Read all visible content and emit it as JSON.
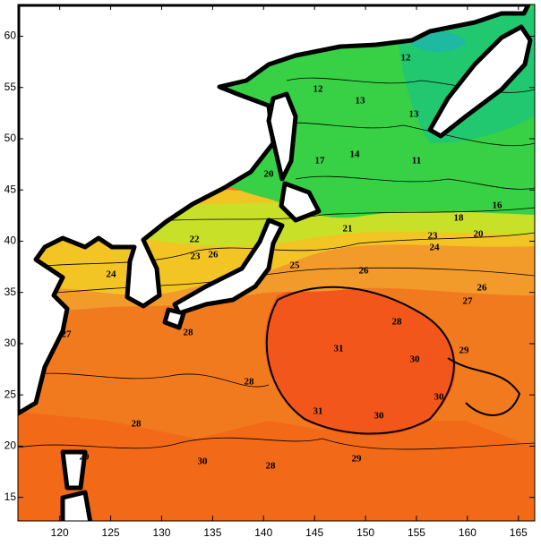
{
  "map": {
    "xlim": [
      115.9,
      166.6
    ],
    "ylim": [
      12.7,
      63.1
    ],
    "xticks": [
      120,
      125,
      130,
      135,
      140,
      145,
      150,
      155,
      160,
      165
    ],
    "yticks": [
      15,
      20,
      25,
      30,
      35,
      40,
      45,
      50,
      55,
      60
    ],
    "contour_labels": [
      12,
      13,
      12,
      13,
      11,
      14,
      17,
      20,
      18,
      16,
      20,
      21,
      23,
      24,
      22,
      23,
      26,
      25,
      26,
      26,
      27,
      24,
      28,
      27,
      29,
      31,
      30,
      28,
      30,
      31,
      30,
      28,
      29,
      30,
      28,
      29,
      28
    ]
  }
}
